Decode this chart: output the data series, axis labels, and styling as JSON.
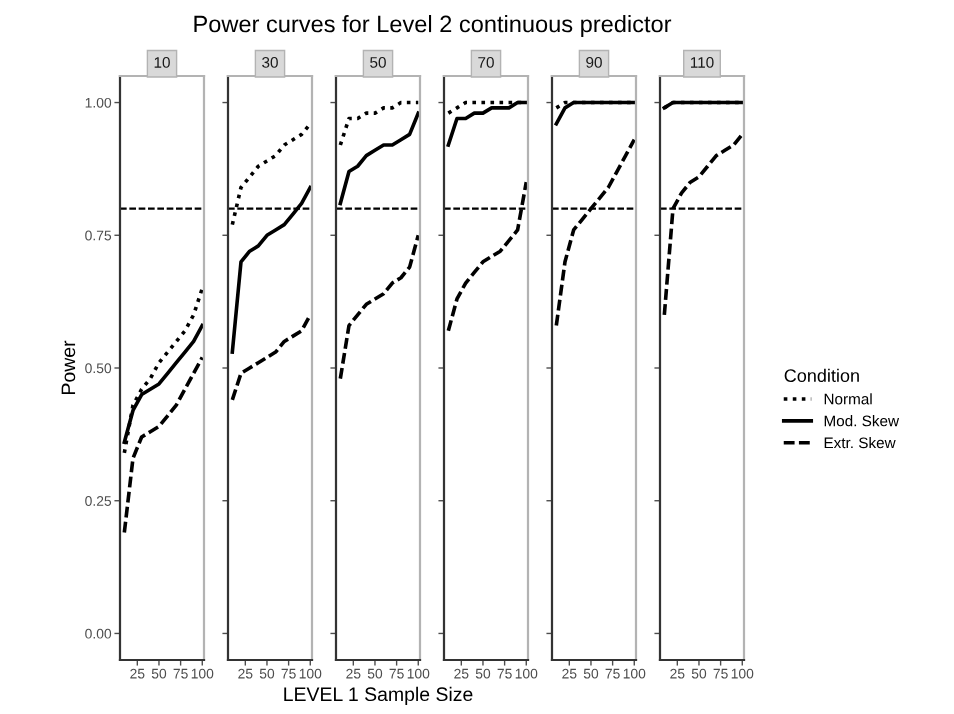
{
  "chart_data": [
    {
      "type": "line",
      "title": "10",
      "annotations": [
        "Power curves for Level 2 continuous predictor"
      ],
      "ylabel": "Power",
      "legend_title": "Condition",
      "legend": "right",
      "grid": false,
      "marker": "none",
      "xlim": [
        5,
        102
      ],
      "xticks": [
        25,
        50,
        75,
        100
      ],
      "ylim": [
        -0.05,
        1.05
      ],
      "yticks": [
        {
          "value": 0,
          "label": "0.00"
        },
        {
          "value": 0.25,
          "label": "0.25"
        },
        {
          "value": 0.5,
          "label": "0.50"
        },
        {
          "value": 0.75,
          "label": "0.75"
        },
        {
          "value": 1,
          "label": "1.00"
        }
      ],
      "ref_lines": [
        {
          "axis": "y",
          "value": 0.8,
          "line_style": "dashed",
          "color": "#000000"
        }
      ],
      "series": [
        {
          "name": "Normal",
          "color": "#000000",
          "line_style": "dotted",
          "x": [
            10,
            20,
            30,
            40,
            50,
            60,
            70,
            80,
            90,
            100
          ],
          "values": [
            0.34,
            0.43,
            0.46,
            0.48,
            0.51,
            0.53,
            0.55,
            0.57,
            0.6,
            0.65
          ]
        },
        {
          "name": "Mod. Skew",
          "color": "#000000",
          "line_style": "solid",
          "x": [
            10,
            20,
            30,
            40,
            50,
            60,
            70,
            80,
            90,
            100
          ],
          "values": [
            0.36,
            0.42,
            0.45,
            0.46,
            0.47,
            0.49,
            0.51,
            0.53,
            0.55,
            0.58
          ]
        },
        {
          "name": "Extr. Skew",
          "color": "#000000",
          "line_style": "dashed",
          "x": [
            10,
            20,
            30,
            40,
            50,
            60,
            70,
            80,
            90,
            100
          ],
          "values": [
            0.19,
            0.33,
            0.37,
            0.38,
            0.39,
            0.41,
            0.43,
            0.46,
            0.49,
            0.52
          ]
        }
      ]
    },
    {
      "type": "line",
      "title": "30",
      "tick_labels": "x",
      "grid": false,
      "marker": "none",
      "xlim": [
        5,
        102
      ],
      "xticks": [
        25,
        50,
        75,
        100
      ],
      "ylim": [
        -0.05,
        1.05
      ],
      "ref_lines": [
        {
          "axis": "y",
          "value": 0.8,
          "line_style": "dashed",
          "color": "#000000"
        }
      ],
      "series": [
        {
          "color": "#000000",
          "line_style": "dotted",
          "x": [
            10,
            20,
            30,
            40,
            50,
            60,
            70,
            80,
            90,
            100
          ],
          "values": [
            0.77,
            0.84,
            0.86,
            0.88,
            0.89,
            0.9,
            0.92,
            0.93,
            0.94,
            0.96
          ]
        },
        {
          "color": "#000000",
          "line_style": "solid",
          "x": [
            10,
            20,
            30,
            40,
            50,
            60,
            70,
            80,
            90,
            100
          ],
          "values": [
            0.53,
            0.7,
            0.72,
            0.73,
            0.75,
            0.76,
            0.77,
            0.79,
            0.81,
            0.84
          ]
        },
        {
          "color": "#000000",
          "line_style": "dashed",
          "x": [
            10,
            20,
            30,
            40,
            50,
            60,
            70,
            80,
            90,
            100
          ],
          "values": [
            0.44,
            0.49,
            0.5,
            0.51,
            0.52,
            0.53,
            0.55,
            0.56,
            0.57,
            0.6
          ]
        }
      ]
    },
    {
      "type": "line",
      "title": "50",
      "xlabel": "LEVEL 1 Sample Size",
      "tick_labels": "x",
      "grid": false,
      "marker": "none",
      "xlim": [
        5,
        102
      ],
      "xticks": [
        25,
        50,
        75,
        100
      ],
      "ylim": [
        -0.05,
        1.05
      ],
      "ref_lines": [
        {
          "axis": "y",
          "value": 0.8,
          "line_style": "dashed",
          "color": "#000000"
        }
      ],
      "series": [
        {
          "color": "#000000",
          "line_style": "dotted",
          "x": [
            10,
            20,
            30,
            40,
            50,
            60,
            70,
            80,
            90,
            100
          ],
          "values": [
            0.92,
            0.97,
            0.97,
            0.98,
            0.98,
            0.99,
            0.99,
            1.0,
            1.0,
            1.0
          ]
        },
        {
          "color": "#000000",
          "line_style": "solid",
          "x": [
            10,
            20,
            30,
            40,
            50,
            60,
            70,
            80,
            90,
            100
          ],
          "values": [
            0.81,
            0.87,
            0.88,
            0.9,
            0.91,
            0.92,
            0.92,
            0.93,
            0.94,
            0.98
          ]
        },
        {
          "color": "#000000",
          "line_style": "dashed",
          "x": [
            10,
            20,
            30,
            40,
            50,
            60,
            70,
            80,
            90,
            100
          ],
          "values": [
            0.48,
            0.58,
            0.6,
            0.62,
            0.63,
            0.64,
            0.66,
            0.67,
            0.69,
            0.75
          ]
        }
      ]
    },
    {
      "type": "line",
      "title": "70",
      "tick_labels": "x",
      "grid": false,
      "marker": "none",
      "xlim": [
        5,
        102
      ],
      "xticks": [
        25,
        50,
        75,
        100
      ],
      "ylim": [
        -0.05,
        1.05
      ],
      "ref_lines": [
        {
          "axis": "y",
          "value": 0.8,
          "line_style": "dashed",
          "color": "#000000"
        }
      ],
      "series": [
        {
          "color": "#000000",
          "line_style": "dotted",
          "x": [
            10,
            20,
            30,
            40,
            50,
            60,
            70,
            80,
            90,
            100
          ],
          "values": [
            0.98,
            0.99,
            1.0,
            1.0,
            1.0,
            1.0,
            1.0,
            1.0,
            1.0,
            1.0
          ]
        },
        {
          "color": "#000000",
          "line_style": "solid",
          "x": [
            10,
            20,
            30,
            40,
            50,
            60,
            70,
            80,
            90,
            100
          ],
          "values": [
            0.92,
            0.97,
            0.97,
            0.98,
            0.98,
            0.99,
            0.99,
            0.99,
            1.0,
            1.0
          ]
        },
        {
          "color": "#000000",
          "line_style": "dashed",
          "x": [
            10,
            20,
            30,
            40,
            50,
            60,
            70,
            80,
            90,
            100
          ],
          "values": [
            0.57,
            0.63,
            0.66,
            0.68,
            0.7,
            0.71,
            0.72,
            0.74,
            0.76,
            0.85
          ]
        }
      ]
    },
    {
      "type": "line",
      "title": "90",
      "tick_labels": "x",
      "grid": false,
      "marker": "none",
      "xlim": [
        5,
        102
      ],
      "xticks": [
        25,
        50,
        75,
        100
      ],
      "ylim": [
        -0.05,
        1.05
      ],
      "ref_lines": [
        {
          "axis": "y",
          "value": 0.8,
          "line_style": "dashed",
          "color": "#000000"
        }
      ],
      "series": [
        {
          "color": "#000000",
          "line_style": "dotted",
          "x": [
            10,
            20,
            30,
            40,
            50,
            60,
            70,
            80,
            90,
            100
          ],
          "values": [
            0.99,
            1.0,
            1.0,
            1.0,
            1.0,
            1.0,
            1.0,
            1.0,
            1.0,
            1.0
          ]
        },
        {
          "color": "#000000",
          "line_style": "solid",
          "x": [
            10,
            20,
            30,
            40,
            50,
            60,
            70,
            80,
            90,
            100
          ],
          "values": [
            0.96,
            0.99,
            1.0,
            1.0,
            1.0,
            1.0,
            1.0,
            1.0,
            1.0,
            1.0
          ]
        },
        {
          "color": "#000000",
          "line_style": "dashed",
          "x": [
            10,
            20,
            30,
            40,
            50,
            60,
            70,
            80,
            90,
            100
          ],
          "values": [
            0.58,
            0.7,
            0.76,
            0.78,
            0.8,
            0.82,
            0.84,
            0.87,
            0.9,
            0.93
          ]
        }
      ]
    },
    {
      "type": "line",
      "title": "110",
      "tick_labels": "x",
      "grid": false,
      "marker": "none",
      "xlim": [
        5,
        102
      ],
      "xticks": [
        25,
        50,
        75,
        100
      ],
      "ylim": [
        -0.05,
        1.05
      ],
      "ref_lines": [
        {
          "axis": "y",
          "value": 0.8,
          "line_style": "dashed",
          "color": "#000000"
        }
      ],
      "series": [
        {
          "color": "#000000",
          "line_style": "dotted",
          "x": [
            10,
            20,
            30,
            40,
            50,
            60,
            70,
            80,
            90,
            100
          ],
          "values": [
            0.99,
            1.0,
            1.0,
            1.0,
            1.0,
            1.0,
            1.0,
            1.0,
            1.0,
            1.0
          ]
        },
        {
          "color": "#000000",
          "line_style": "solid",
          "x": [
            10,
            20,
            30,
            40,
            50,
            60,
            70,
            80,
            90,
            100
          ],
          "values": [
            0.99,
            1.0,
            1.0,
            1.0,
            1.0,
            1.0,
            1.0,
            1.0,
            1.0,
            1.0
          ]
        },
        {
          "color": "#000000",
          "line_style": "dashed",
          "x": [
            10,
            20,
            30,
            40,
            50,
            60,
            70,
            80,
            90,
            100
          ],
          "values": [
            0.6,
            0.8,
            0.83,
            0.85,
            0.86,
            0.88,
            0.9,
            0.91,
            0.92,
            0.94
          ]
        }
      ]
    }
  ]
}
